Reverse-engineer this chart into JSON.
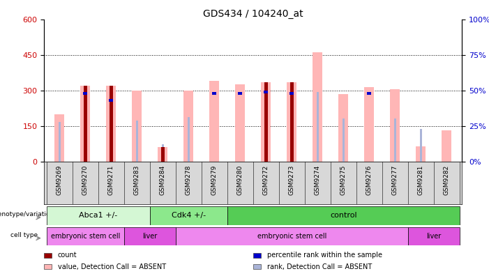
{
  "title": "GDS434 / 104240_at",
  "samples": [
    "GSM9269",
    "GSM9270",
    "GSM9271",
    "GSM9283",
    "GSM9284",
    "GSM9278",
    "GSM9279",
    "GSM9280",
    "GSM9272",
    "GSM9273",
    "GSM9274",
    "GSM9275",
    "GSM9276",
    "GSM9277",
    "GSM9281",
    "GSM9282"
  ],
  "count": [
    null,
    320,
    320,
    null,
    60,
    null,
    null,
    null,
    335,
    335,
    null,
    null,
    null,
    null,
    null,
    null
  ],
  "rank_val": [
    null,
    48,
    43,
    null,
    null,
    null,
    48,
    48,
    49,
    48,
    null,
    null,
    48,
    null,
    null,
    null
  ],
  "value_absent": [
    200,
    320,
    320,
    300,
    60,
    300,
    340,
    325,
    335,
    335,
    460,
    285,
    315,
    305,
    65,
    130
  ],
  "rank_absent_val": [
    28,
    null,
    null,
    29,
    12,
    31,
    null,
    null,
    null,
    null,
    49,
    30,
    null,
    30,
    23,
    null
  ],
  "ylim_left": [
    0,
    600
  ],
  "ylim_right": [
    0,
    100
  ],
  "yticks_left": [
    0,
    150,
    300,
    450,
    600
  ],
  "yticks_right": [
    0,
    25,
    50,
    75,
    100
  ],
  "genotype_groups": [
    {
      "label": "Abca1 +/-",
      "start": 0,
      "end": 4,
      "color": "#d4f7d4"
    },
    {
      "label": "Cdk4 +/-",
      "start": 4,
      "end": 7,
      "color": "#8ce88c"
    },
    {
      "label": "control",
      "start": 7,
      "end": 16,
      "color": "#55cc55"
    }
  ],
  "celltype_groups": [
    {
      "label": "embryonic stem cell",
      "start": 0,
      "end": 3,
      "color": "#ee88ee"
    },
    {
      "label": "liver",
      "start": 3,
      "end": 5,
      "color": "#dd55dd"
    },
    {
      "label": "embryonic stem cell",
      "start": 5,
      "end": 14,
      "color": "#ee88ee"
    },
    {
      "label": "liver",
      "start": 14,
      "end": 16,
      "color": "#dd55dd"
    }
  ],
  "color_count": "#990000",
  "color_rank": "#0000cc",
  "color_value_absent": "#ffb6b6",
  "color_rank_absent": "#aab4d8",
  "axis_label_color_left": "#cc0000",
  "axis_label_color_right": "#0000cc"
}
